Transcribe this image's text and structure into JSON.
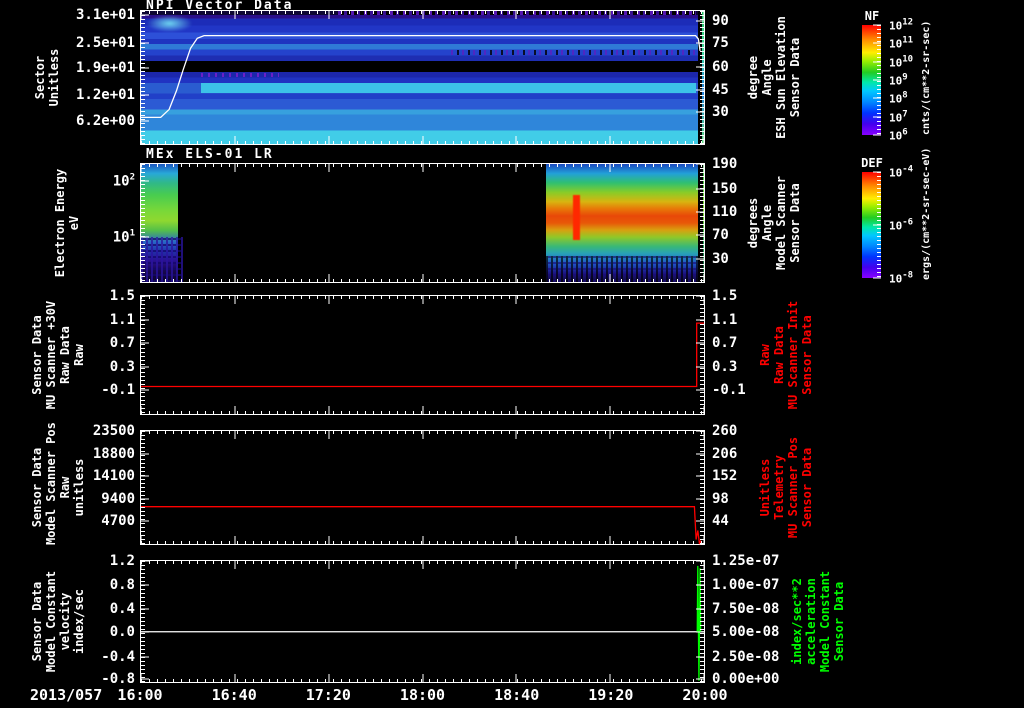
{
  "window": {
    "bg": "#000000"
  },
  "x_axis": {
    "date_label": "2013/057",
    "tick_labels": [
      "16:00",
      "16:40",
      "17:20",
      "18:00",
      "18:40",
      "19:20",
      "20:00"
    ],
    "tick_pos": [
      0,
      16.666,
      33.333,
      50,
      66.666,
      83.333,
      100
    ]
  },
  "panels": [
    {
      "title": "NPI Vector Data",
      "left_title_lines": [
        "Sector",
        "Unitless"
      ],
      "right_title_lines": [
        "Sensor Data",
        "ESH Sun Elevation",
        "Angle",
        "degree"
      ],
      "left_ticks": [
        {
          "label": "3.1e+01",
          "pos": 3
        },
        {
          "label": "2.5e+01",
          "pos": 23.7
        },
        {
          "label": "1.9e+01",
          "pos": 43
        },
        {
          "label": "1.2e+01",
          "pos": 63
        },
        {
          "label": "6.2e+00",
          "pos": 83
        }
      ],
      "right_ticks": [
        {
          "label": "90",
          "pos": 7.4
        },
        {
          "label": "75",
          "pos": 24.4
        },
        {
          "label": "60",
          "pos": 42.2
        },
        {
          "label": "45",
          "pos": 59.3
        },
        {
          "label": "30",
          "pos": 76.3
        }
      ],
      "bands": [
        {
          "from": 0,
          "to": 3,
          "color": "#0d0633"
        },
        {
          "from": 3,
          "to": 5.5,
          "color": "#2a0f8a"
        },
        {
          "from": 5.5,
          "to": 11,
          "color": "#1c2cb8"
        },
        {
          "from": 11,
          "to": 16,
          "color": "#2136c6"
        },
        {
          "from": 16,
          "to": 21,
          "color": "#2d50d8"
        },
        {
          "from": 21,
          "to": 25,
          "color": "#1e34c0"
        },
        {
          "from": 25,
          "to": 29,
          "color": "#2f7ad6"
        },
        {
          "from": 29,
          "to": 33.5,
          "color": "#2443cc"
        },
        {
          "from": 33.5,
          "to": 37.5,
          "color": "#1e2eb2"
        },
        {
          "from": 37.5,
          "to": 46,
          "color": "#000000"
        },
        {
          "from": 46,
          "to": 50,
          "color": "#1c27ac"
        },
        {
          "from": 50,
          "to": 54,
          "color": "#2033c2"
        },
        {
          "from": 54,
          "to": 62,
          "color": "#2a5cd0"
        },
        {
          "from": 62,
          "to": 66,
          "color": "#2140c8"
        },
        {
          "from": 66,
          "to": 74,
          "color": "#2c5ad4"
        },
        {
          "from": 74,
          "to": 78,
          "color": "#37a0de"
        },
        {
          "from": 78,
          "to": 90,
          "color": "#2f86da"
        },
        {
          "from": 90,
          "to": 100,
          "color": "#41cde8"
        }
      ],
      "line": {
        "color": "#ffffff",
        "points": [
          [
            0,
            80
          ],
          [
            3.5,
            80
          ],
          [
            5,
            74
          ],
          [
            6.3,
            60
          ],
          [
            7.5,
            44
          ],
          [
            8.8,
            28
          ],
          [
            10,
            20.5
          ],
          [
            11.2,
            18.5
          ],
          [
            98.5,
            18.5
          ],
          [
            99,
            21
          ],
          [
            99.3,
            30
          ]
        ]
      }
    },
    {
      "title": "MEx ELS-01 LR",
      "left_title_lines": [
        "Electron Energy",
        "eV"
      ],
      "right_title_lines": [
        "Sensor Data",
        "Model Scanner",
        "Angle",
        "degrees"
      ],
      "left_ticks": [
        {
          "label": "10^2",
          "pos": 14
        },
        {
          "label": "10^1",
          "pos": 61.7
        }
      ],
      "right_ticks": [
        {
          "label": "190",
          "pos": 0
        },
        {
          "label": "150",
          "pos": 20.8
        },
        {
          "label": "110",
          "pos": 40.8
        },
        {
          "label": "70",
          "pos": 60
        },
        {
          "label": "30",
          "pos": 80.8
        }
      ]
    },
    {
      "left_title_lines": [
        "Sensor Data",
        "MU Scanner +30V",
        "Raw Data",
        "Raw"
      ],
      "right_title_lines": [
        "Sensor Data",
        "MU Scanner Init",
        "Raw Data",
        "Raw"
      ],
      "left_ticks": [
        {
          "label": "1.5",
          "pos": 0
        },
        {
          "label": "1.1",
          "pos": 20
        },
        {
          "label": "0.7",
          "pos": 40
        },
        {
          "label": "0.3",
          "pos": 60
        },
        {
          "label": "-0.1",
          "pos": 80
        }
      ],
      "right_ticks": [
        {
          "label": "1.5",
          "pos": 0
        },
        {
          "label": "1.1",
          "pos": 20
        },
        {
          "label": "0.7",
          "pos": 40
        },
        {
          "label": "0.3",
          "pos": 60
        },
        {
          "label": "-0.1",
          "pos": 80
        }
      ],
      "line": {
        "color": "#ff0000",
        "points": [
          [
            0,
            76.7
          ],
          [
            98.7,
            76.7
          ],
          [
            98.7,
            23
          ],
          [
            100,
            23
          ]
        ]
      }
    },
    {
      "left_title_lines": [
        "Sensor Data",
        "Model Scanner Pos",
        "Raw",
        "unitless"
      ],
      "right_title_lines": [
        "Sensor Data",
        "MU Scanner Pos",
        "Telemetry",
        "Unitless"
      ],
      "left_ticks": [
        {
          "label": "23500",
          "pos": 0
        },
        {
          "label": "18800",
          "pos": 20
        },
        {
          "label": "14100",
          "pos": 40
        },
        {
          "label": "9400",
          "pos": 60
        },
        {
          "label": "4700",
          "pos": 80
        }
      ],
      "right_ticks": [
        {
          "label": "260",
          "pos": 0
        },
        {
          "label": "206",
          "pos": 20
        },
        {
          "label": "152",
          "pos": 40
        },
        {
          "label": "98",
          "pos": 60
        },
        {
          "label": "44",
          "pos": 80
        }
      ],
      "line": {
        "color": "#ff0000",
        "points": [
          [
            0,
            67
          ],
          [
            98.3,
            67
          ],
          [
            98.6,
            96
          ],
          [
            98.9,
            88
          ],
          [
            99.2,
            100
          ],
          [
            99.4,
            97
          ],
          [
            99.5,
            100
          ]
        ]
      }
    },
    {
      "left_title_lines": [
        "Sensor Data",
        "Model Constant",
        "velocity",
        "index/sec"
      ],
      "right_title_lines": [
        "Sensor Data",
        "Model Constant",
        "acceleration",
        "index/sec**2"
      ],
      "left_ticks": [
        {
          "label": "1.2",
          "pos": 0
        },
        {
          "label": "0.8",
          "pos": 19.5
        },
        {
          "label": "0.4",
          "pos": 40
        },
        {
          "label": "0.0",
          "pos": 58.5
        },
        {
          "label": "-0.4",
          "pos": 79
        },
        {
          "label": "-0.8",
          "pos": 97.5
        }
      ],
      "right_ticks": [
        {
          "label": "1.25e-07",
          "pos": 0
        },
        {
          "label": "1.00e-07",
          "pos": 19.5
        },
        {
          "label": "7.50e-08",
          "pos": 40
        },
        {
          "label": "5.00e-08",
          "pos": 58.5
        },
        {
          "label": "2.50e-08",
          "pos": 79
        },
        {
          "label": "0.00e+00",
          "pos": 97.5
        }
      ],
      "line": {
        "color": "#ffffff",
        "points": [
          [
            0,
            58.5
          ],
          [
            100,
            58.5
          ]
        ]
      },
      "line2": {
        "color": "#00ff00",
        "points": [
          [
            98.8,
            58.5
          ],
          [
            98.9,
            4
          ],
          [
            99.1,
            99
          ],
          [
            99.3,
            6
          ],
          [
            99.4,
            58.5
          ]
        ]
      }
    }
  ],
  "colorbars": [
    {
      "name": "NF",
      "units": "cnts/(cm**2-sr-sec)",
      "ticks": [
        {
          "label": "10^12",
          "pos": 0
        },
        {
          "label": "10^11",
          "pos": 16.7
        },
        {
          "label": "10^10",
          "pos": 33.3
        },
        {
          "label": "10^9",
          "pos": 50
        },
        {
          "label": "10^8",
          "pos": 66.7
        },
        {
          "label": "10^7",
          "pos": 83.3
        },
        {
          "label": "10^6",
          "pos": 100
        }
      ],
      "colors": [
        "#ff0000 0%",
        "#ff8800 13%",
        "#ffee00 25%",
        "#99ee00 33%",
        "#22cc22 43%",
        "#00e8a8 52%",
        "#00c8ff 60%",
        "#0088ff 70%",
        "#0033ff 80%",
        "#4400ee 90%",
        "#8800ff 100%"
      ]
    },
    {
      "name": "DEF",
      "units": "ergs/(cm**2-sr-sec-eV)",
      "ticks": [
        {
          "label": "10^-4",
          "pos": 0
        },
        {
          "label": "10^-6",
          "pos": 50
        },
        {
          "label": "10^-8",
          "pos": 100
        }
      ],
      "colors": [
        "#ff0000 0%",
        "#ff8800 13%",
        "#ffee00 25%",
        "#99ee00 33%",
        "#22cc22 43%",
        "#00e8a8 52%",
        "#00c8ff 60%",
        "#0088ff 70%",
        "#0033ff 80%",
        "#4400ee 90%",
        "#8800ff 100%"
      ]
    }
  ],
  "chart_data": [
    {
      "type": "heatmap",
      "title": "NPI Vector Data",
      "xlabel": "time, 2013/057 16:00 to 20:00",
      "ylabel": "Sector Unitless",
      "yticks": [
        "3.1e+01",
        "2.5e+01",
        "1.9e+01",
        "1.2e+01",
        "6.2e+00"
      ],
      "y2label": "Sensor Data ESH Sun Elevation Angle degree",
      "y2ticks": [
        90,
        75,
        60,
        45,
        30
      ],
      "colorbar": {
        "name": "NF",
        "units": "cnts/(cm**2-sr-sec)",
        "range": [
          "1e6",
          "1e12"
        ]
      },
      "description": "About 32 horizontal sector rows in blue/cyan (~1e6-1e8 cnts); black no-data rows near sectors 13-15; sectors ~8-9 brighten to cyan after 16:25; bright cyan bottom rows; faint purple noise speckle in highest sectors increasing after 17:30; cyan blob sectors 25-31 near 16:05-16:15; black data-gap column near 19:57",
      "overlay_line": {
        "name": "ESH Sun Elevation Angle (deg)",
        "x": [
          "16:00",
          "16:05",
          "16:10",
          "16:15",
          "16:20",
          "16:25",
          "19:57",
          "20:00"
        ],
        "y": [
          27,
          27,
          38,
          62,
          82,
          88,
          88,
          84
        ]
      }
    },
    {
      "type": "heatmap",
      "title": "MEx ELS-01 LR",
      "ylabel": "Electron Energy eV",
      "yscale": "log",
      "yticks": [
        "10^2",
        "10^1"
      ],
      "y2label": "Sensor Data Model Scanner Angle degrees",
      "y2ticks": [
        190,
        150,
        110,
        70,
        30
      ],
      "colorbar": {
        "name": "DEF",
        "units": "ergs/(cm**2-sr-sec-eV)",
        "range": [
          "1e-8",
          "1e-4"
        ]
      },
      "description": "Data 16:00-16:13: green/yellow-green flux 10-100 eV, cyan at ~100-200 eV, dark blue/purple speckle below ~8 eV. No data (black) 16:13-18:50. Data 18:50-19:57: intense yellow-orange-red band ~20-60 eV peaking near 1e-4 with red vertical flare near 19:25, green 80-200 eV, blue speckle below 10 eV, black gap column near 19:57"
    },
    {
      "type": "line",
      "title": "Sensor Data MU Scanner +30V Raw Data Raw",
      "yticks_left": [
        1.5,
        1.1,
        0.7,
        0.3,
        -0.1
      ],
      "yticks_right": [
        1.5,
        1.1,
        0.7,
        0.3,
        -0.1
      ],
      "series": [
        {
          "name": "MU Scanner Init Raw Data Raw",
          "color": "#ff0000",
          "x": [
            "16:00",
            "19:57",
            "19:57",
            "20:00"
          ],
          "y": [
            0.0,
            0.0,
            1.05,
            1.05
          ]
        }
      ]
    },
    {
      "type": "line",
      "title": "Sensor Data Model Scanner Pos Raw unitless",
      "yticks_left": [
        23500,
        18800,
        14100,
        9400,
        4700
      ],
      "yticks_right": [
        260,
        206,
        152,
        98,
        44
      ],
      "series": [
        {
          "name": "MU Scanner Pos Telemetry",
          "color": "#ff0000",
          "x": [
            "16:00",
            "19:56",
            "19:57",
            "19:58",
            "19:59"
          ],
          "y": [
            8300,
            8300,
            900,
            2700,
            300
          ]
        }
      ]
    },
    {
      "type": "line",
      "title": "Sensor Data Model Constant velocity index/sec",
      "yticks_left": [
        1.2,
        0.8,
        0.4,
        0.0,
        -0.4,
        -0.8
      ],
      "yticks_right": [
        "1.25e-07",
        "1.00e-07",
        "7.50e-08",
        "5.00e-08",
        "2.50e-08",
        "0.00e+00"
      ],
      "series": [
        {
          "name": "Model Constant velocity (index/sec)",
          "color": "#ffffff",
          "x": [
            "16:00",
            "20:00"
          ],
          "y": [
            0.0,
            0.0
          ]
        },
        {
          "name": "Model Constant acceleration (index/sec**2)",
          "color": "#00ff00",
          "x": [
            "19:57",
            "19:58",
            "19:59"
          ],
          "y": [
            1.2e-07,
            0.0,
            1.15e-07
          ]
        }
      ]
    }
  ]
}
